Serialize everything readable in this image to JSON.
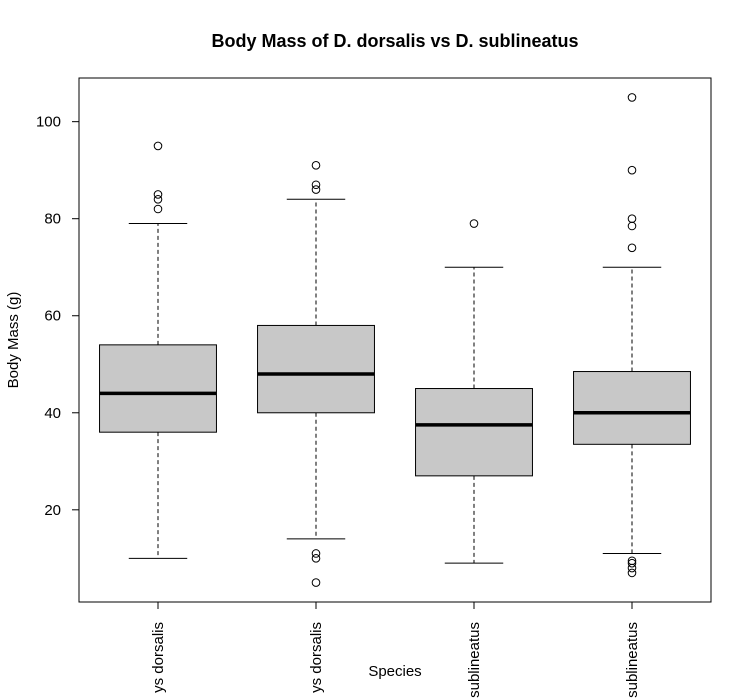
{
  "chart_data": {
    "type": "box",
    "title": "Body Mass of D. dorsalis vs D. sublineatus",
    "xlabel": "Species",
    "ylabel": "Body Mass (g)",
    "ylim": [
      1,
      109
    ],
    "yticks": [
      20,
      40,
      60,
      80,
      100
    ],
    "grid": false,
    "categories": [
      "ys dorsalis",
      "ys dorsalis",
      "sublineatus",
      "sublineatus"
    ],
    "boxes": [
      {
        "whisker_low": 10,
        "q1": 36,
        "median": 44,
        "q3": 54,
        "whisker_high": 79,
        "outliers": [
          82,
          84,
          85,
          95
        ]
      },
      {
        "whisker_low": 14,
        "q1": 40,
        "median": 48,
        "q3": 58,
        "whisker_high": 84,
        "outliers": [
          5,
          10,
          11,
          86,
          87,
          91
        ]
      },
      {
        "whisker_low": 9,
        "q1": 27,
        "median": 37.5,
        "q3": 45,
        "whisker_high": 70,
        "outliers": [
          79
        ]
      },
      {
        "whisker_low": 11,
        "q1": 33.5,
        "median": 40,
        "q3": 48.5,
        "whisker_high": 70,
        "outliers": [
          7,
          8,
          9,
          9.5,
          74,
          78.5,
          80,
          90,
          105
        ]
      }
    ],
    "box_fill": "#c8c8c8",
    "line_color": "#000000"
  }
}
